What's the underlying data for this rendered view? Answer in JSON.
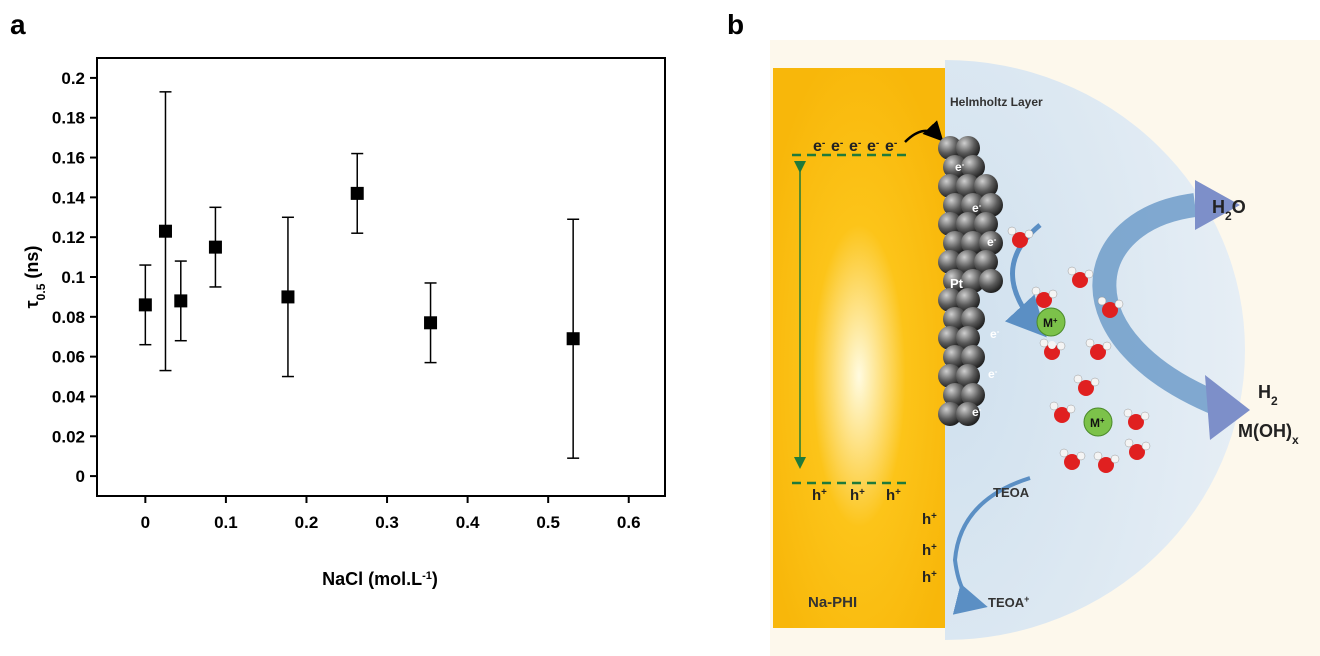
{
  "panel_labels": [
    "a",
    "b"
  ],
  "chart_data": {
    "type": "scatter",
    "xlabel": {
      "text": "NaCl (mol.L",
      "sup": "-1",
      "close": ")"
    },
    "ylabel": {
      "text": "τ",
      "sub": "0.5",
      "rest": " (ns)"
    },
    "x": [
      0,
      0.025,
      0.044,
      0.087,
      0.177,
      0.263,
      0.354,
      0.531
    ],
    "values": [
      0.086,
      0.123,
      0.088,
      0.115,
      0.09,
      0.142,
      0.077,
      0.069
    ],
    "errors": [
      0.02,
      0.07,
      0.02,
      0.02,
      0.04,
      0.02,
      0.02,
      0.06
    ],
    "color": "#000000",
    "marker": "square",
    "xlim": [
      -0.06,
      0.645
    ],
    "ylim": [
      -0.01,
      0.21
    ],
    "xticks": [
      0,
      0.1,
      0.2,
      0.3,
      0.4,
      0.5,
      0.6
    ],
    "yticks": [
      0,
      0.02,
      0.04,
      0.06,
      0.08,
      0.1,
      0.12,
      0.14,
      0.16,
      0.18,
      0.2
    ]
  },
  "diagram": {
    "material": "Na-PHI",
    "layer": "Helmholtz Layer",
    "electron": {
      "base": "e",
      "sup": "-"
    },
    "hole": {
      "base": "h",
      "sup": "+"
    },
    "metal": "Pt",
    "cation": {
      "base": "M",
      "sup": "+"
    },
    "water": {
      "base": "H",
      "sub": "2",
      "rest": "O"
    },
    "hydrogen": {
      "base": "H",
      "sub": "2"
    },
    "hydroxide": {
      "base": "M(OH)",
      "sub": "x"
    },
    "donor": "TEOA",
    "oxidized_donor": {
      "base": "TEOA",
      "sup": "+"
    }
  }
}
